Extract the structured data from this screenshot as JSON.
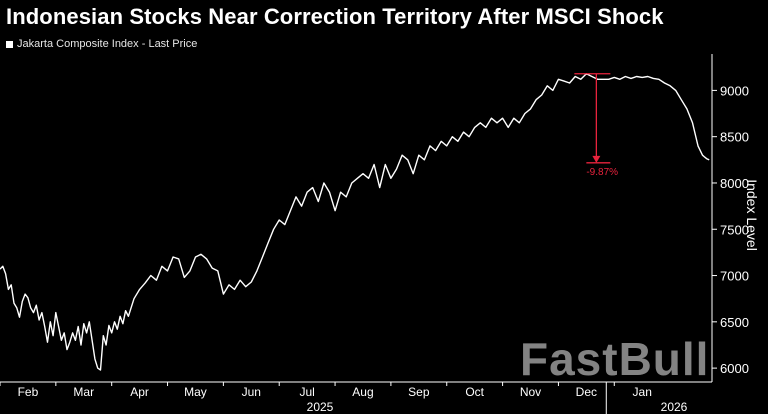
{
  "chart_data": {
    "type": "line",
    "title": "Indonesian Stocks Near Correction Territory After MSCI Shock",
    "legend": "Jakarta Composite Index - Last Price",
    "ylabel": "Index Level",
    "xlabel": "",
    "ylim": [
      5850,
      9350
    ],
    "y_ticks": [
      6000,
      6500,
      7000,
      7500,
      8000,
      8500,
      9000
    ],
    "y_tick_labels": [
      "6000",
      "6500",
      "7000",
      "7500",
      "8000",
      "8500",
      "9000"
    ],
    "x_range": [
      0,
      12.75
    ],
    "months": [
      "Feb",
      "Mar",
      "Apr",
      "May",
      "Jun",
      "Jul",
      "Aug",
      "Sep",
      "Oct",
      "Nov",
      "Dec",
      "Jan"
    ],
    "years": [
      "2025",
      "2026"
    ],
    "grid": false,
    "legend_position": "top-left",
    "annotation": {
      "text": "-9.87%",
      "color": "#e8233d"
    },
    "series": [
      {
        "name": "Jakarta Composite Index - Last Price",
        "color": "#ffffff",
        "x": [
          0.0,
          0.05,
          0.1,
          0.15,
          0.2,
          0.25,
          0.3,
          0.35,
          0.4,
          0.45,
          0.5,
          0.55,
          0.6,
          0.65,
          0.7,
          0.75,
          0.8,
          0.85,
          0.9,
          0.95,
          1.0,
          1.05,
          1.1,
          1.15,
          1.2,
          1.25,
          1.3,
          1.35,
          1.4,
          1.45,
          1.5,
          1.55,
          1.6,
          1.65,
          1.7,
          1.75,
          1.8,
          1.85,
          1.9,
          1.95,
          2.0,
          2.05,
          2.1,
          2.15,
          2.2,
          2.25,
          2.3,
          2.4,
          2.5,
          2.6,
          2.7,
          2.8,
          2.9,
          3.0,
          3.1,
          3.2,
          3.3,
          3.4,
          3.5,
          3.6,
          3.7,
          3.8,
          3.9,
          4.0,
          4.1,
          4.2,
          4.3,
          4.4,
          4.5,
          4.6,
          4.7,
          4.8,
          4.9,
          5.0,
          5.1,
          5.2,
          5.3,
          5.4,
          5.5,
          5.6,
          5.7,
          5.8,
          5.9,
          6.0,
          6.1,
          6.2,
          6.3,
          6.4,
          6.5,
          6.6,
          6.7,
          6.8,
          6.9,
          7.0,
          7.1,
          7.2,
          7.3,
          7.4,
          7.5,
          7.6,
          7.7,
          7.8,
          7.9,
          8.0,
          8.1,
          8.2,
          8.3,
          8.4,
          8.5,
          8.6,
          8.7,
          8.8,
          8.9,
          9.0,
          9.1,
          9.2,
          9.3,
          9.4,
          9.5,
          9.6,
          9.7,
          9.8,
          9.9,
          10.0,
          10.1,
          10.2,
          10.3,
          10.4,
          10.5,
          10.6,
          10.7,
          10.8,
          10.9,
          11.0,
          11.1,
          11.2,
          11.3,
          11.4,
          11.5,
          11.6,
          11.7,
          11.8,
          11.9,
          12.0,
          12.1,
          12.2,
          12.3,
          12.4,
          12.5,
          12.58,
          12.62,
          12.66,
          12.7
        ],
        "values": [
          7070,
          7100,
          7020,
          6850,
          6900,
          6700,
          6650,
          6550,
          6720,
          6800,
          6760,
          6650,
          6600,
          6680,
          6520,
          6600,
          6450,
          6280,
          6500,
          6350,
          6600,
          6450,
          6300,
          6380,
          6200,
          6280,
          6380,
          6300,
          6450,
          6250,
          6480,
          6380,
          6500,
          6300,
          6100,
          6000,
          5980,
          6350,
          6250,
          6460,
          6380,
          6500,
          6420,
          6560,
          6480,
          6620,
          6560,
          6750,
          6850,
          6920,
          7000,
          6950,
          7100,
          7050,
          7200,
          7180,
          6980,
          7050,
          7200,
          7230,
          7180,
          7080,
          7050,
          6800,
          6900,
          6850,
          6950,
          6880,
          6930,
          7050,
          7200,
          7350,
          7500,
          7600,
          7550,
          7700,
          7850,
          7750,
          7900,
          7950,
          7800,
          8000,
          7900,
          7700,
          7900,
          7850,
          8000,
          8050,
          8100,
          8050,
          8200,
          7950,
          8200,
          8050,
          8150,
          8300,
          8250,
          8100,
          8300,
          8250,
          8400,
          8350,
          8450,
          8400,
          8500,
          8450,
          8550,
          8500,
          8600,
          8650,
          8600,
          8700,
          8650,
          8700,
          8600,
          8700,
          8650,
          8750,
          8800,
          8900,
          8950,
          9050,
          9000,
          9120,
          9100,
          9080,
          9150,
          9120,
          9180,
          9150,
          9120,
          9120,
          9120,
          9140,
          9120,
          9150,
          9130,
          9150,
          9140,
          9150,
          9130,
          9120,
          9080,
          9050,
          9000,
          8900,
          8800,
          8650,
          8400,
          8300,
          8280,
          8260,
          8250
        ]
      }
    ]
  }
}
